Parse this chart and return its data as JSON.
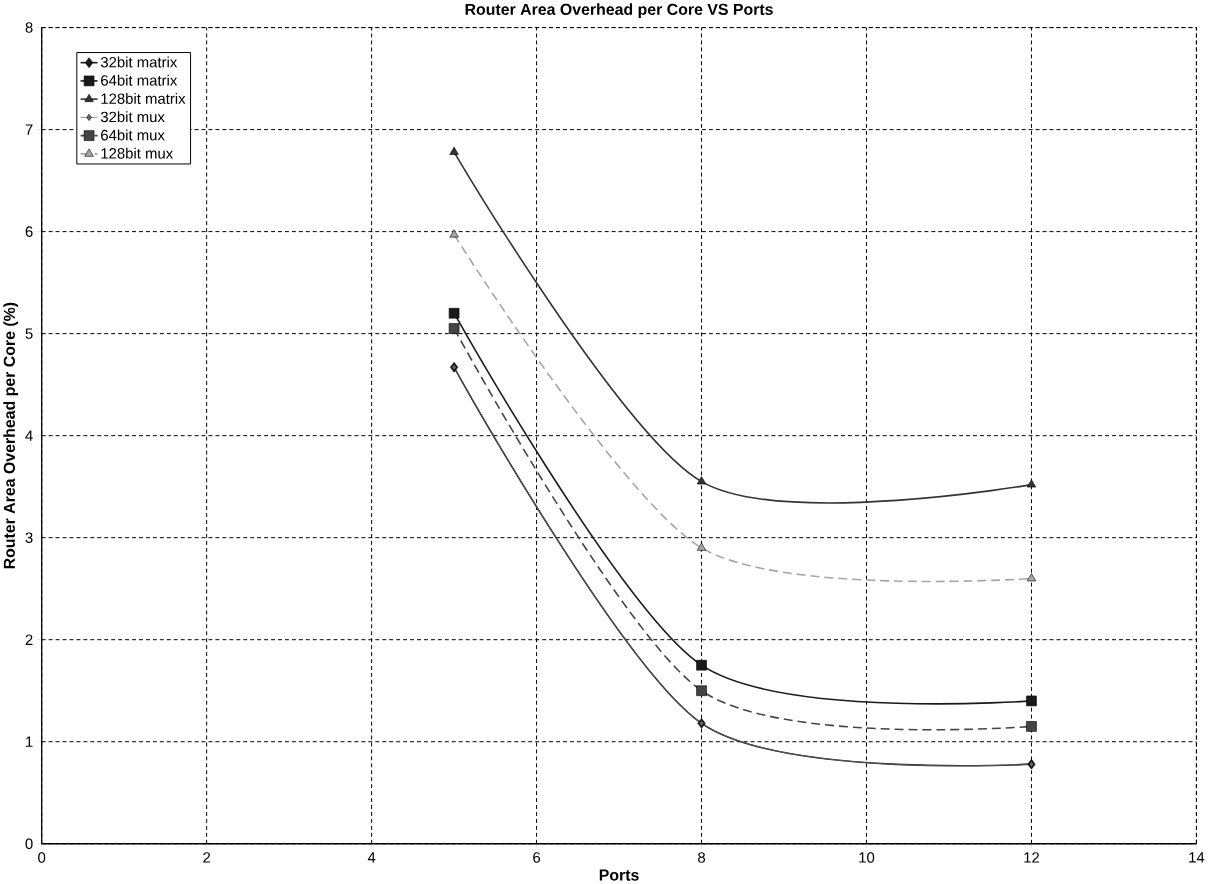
{
  "chart_data": {
    "type": "line",
    "title": "Router Area Overhead per Core VS Ports",
    "xlabel": "Ports",
    "ylabel": "Router Area Overhead per Core (%)",
    "x": [
      5,
      8,
      12
    ],
    "series": [
      {
        "name": "32bit matrix",
        "color": "#1a1a1a",
        "values": [
          4.67,
          1.18,
          0.78
        ],
        "marker": "diamond",
        "line_style": "solid"
      },
      {
        "name": "64bit matrix",
        "color": "#1a1a1a",
        "values": [
          5.2,
          1.75,
          1.4
        ],
        "marker": "square",
        "line_style": "solid"
      },
      {
        "name": "128bit matrix",
        "color": "#333333",
        "values": [
          6.78,
          3.55,
          3.52
        ],
        "marker": "triangle",
        "line_style": "solid"
      },
      {
        "name": "32bit mux",
        "color": "#666666",
        "values": [
          4.67,
          1.18,
          0.78
        ],
        "marker": "diamond",
        "line_style": "solid"
      },
      {
        "name": "64bit mux",
        "color": "#444444",
        "values": [
          5.05,
          1.5,
          1.15
        ],
        "marker": "square",
        "line_style": "dashed"
      },
      {
        "name": "128bit mux",
        "color": "#a6a6a6",
        "values": [
          5.97,
          2.9,
          2.6
        ],
        "marker": "triangle",
        "line_style": "dashed"
      }
    ],
    "xlim": [
      0,
      14
    ],
    "xticks": [
      0,
      2,
      4,
      6,
      8,
      10,
      12,
      14
    ],
    "ylim": [
      0,
      8
    ],
    "yticks": [
      0,
      1,
      2,
      3,
      4,
      5,
      6,
      7,
      8
    ],
    "grid": true,
    "legend": "top left"
  }
}
